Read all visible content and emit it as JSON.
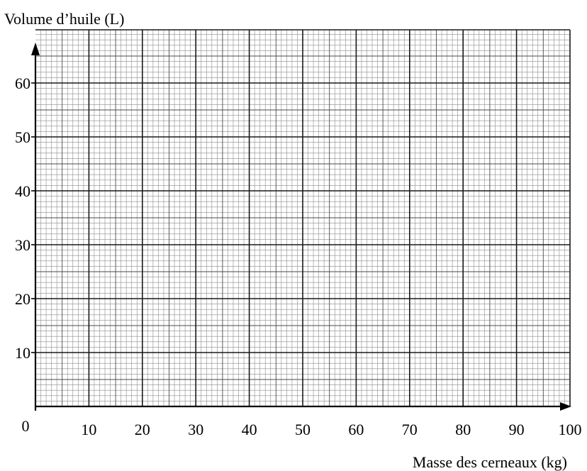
{
  "chart_data": {
    "type": "line",
    "title": "",
    "ylabel": "Volume d’huile (L)",
    "xlabel": "Masse des cerneaux (kg)",
    "xlim": [
      0,
      100
    ],
    "ylim": [
      0,
      70
    ],
    "x_ticks": [
      0,
      10,
      20,
      30,
      40,
      50,
      60,
      70,
      80,
      90,
      100
    ],
    "y_ticks": [
      10,
      20,
      30,
      40,
      50,
      60
    ],
    "grid": true,
    "grid_minor_step": 1,
    "grid_major_step": 10,
    "series": [],
    "colors": {
      "axis": "#000000",
      "grid_major": "#1a1a1a",
      "grid_minor": "#8c8c8c",
      "background": "#ffffff"
    }
  }
}
